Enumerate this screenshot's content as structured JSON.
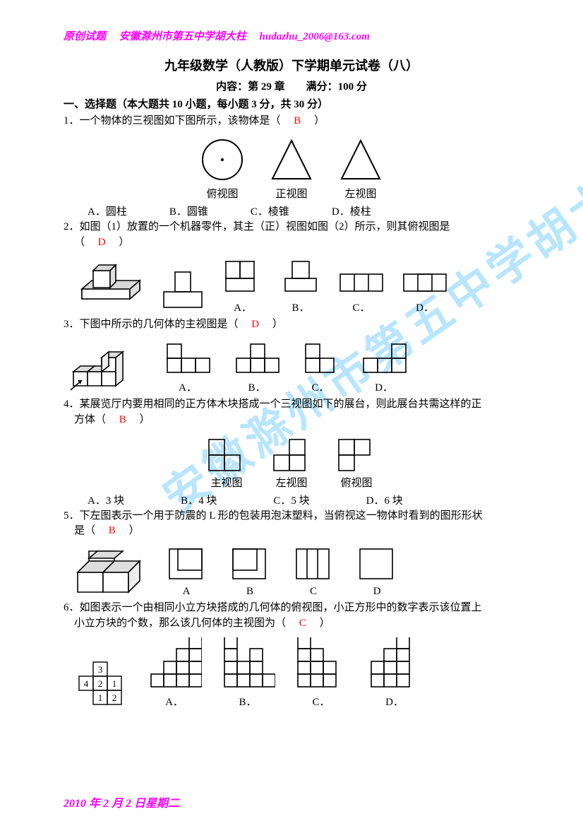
{
  "header": {
    "left": "原创试题",
    "mid": "安徽滁州市第五中学胡大柱",
    "email": "hudazhu_2006@163.com",
    "color": "#ff00ff"
  },
  "title": "九年级数学（人教版）下学期单元试卷（八）",
  "subtitle": "内容：第 29 章　　满分：100 分",
  "section1": "一、选择题（本大题共 10 小题，每小题 3 分，共 30 分）",
  "watermark": "安徽滁州市第五中学胡大柱",
  "footer": "2010 年 2 月 2 日星期二",
  "q1": {
    "text": "1．一个物体的三视图如下图所示，该物体是（",
    "ans": "B",
    "tail": "）",
    "fig_labels": [
      "俯视图",
      "正视图",
      "左视图"
    ],
    "opts": [
      "A．圆柱",
      "B．圆锥",
      "C．棱锥",
      "D．棱柱"
    ]
  },
  "q2": {
    "text1": "2．如图（1）放置的一个机器零件，其主（正）视图如图（2）所示，则其俯视图是",
    "text2": "（",
    "ans": "D",
    "text3": "）",
    "opt_lbl": [
      "A．",
      "B．",
      "C．",
      "D．"
    ]
  },
  "q3": {
    "text": "3．下图中所示的几何体的主视图是（",
    "ans": "D",
    "tail": "）",
    "opt_lbl": [
      "A．",
      "B．",
      "C．",
      "D．"
    ]
  },
  "q4": {
    "text1": "4．某展览厅内要用相同的正方体木块搭成一个三视图如下的展台，则此展台共需这样的正",
    "text2": "方体（",
    "ans": "B",
    "text3": "）",
    "fig_labels": [
      "主视图",
      "左视图",
      "俯视图"
    ],
    "opts": [
      "A．3 块",
      "B．4 块",
      "C．5 块",
      "D．6 块"
    ]
  },
  "q5": {
    "text1": "5．下左图表示一个用于防震的 L 形的包装用泡沫塑料，当俯视这一物体时看到的图形形状",
    "text2": "是（",
    "ans": "B",
    "text3": "）",
    "opt_lbl": [
      "A",
      "B",
      "C",
      "D"
    ]
  },
  "q6": {
    "text1": "6．如图表示一个由相同小立方块搭成的几何体的俯视图，小正方形中的数字表示该位置上",
    "text2": "小立方块的个数，那么该几何体的主视图为（",
    "ans": "C",
    "text3": "）",
    "grid_data": [
      [
        null,
        3,
        null
      ],
      [
        4,
        2,
        1
      ],
      [
        null,
        1,
        2
      ]
    ],
    "opt_lbl": [
      "A．",
      "B．",
      "C．",
      "D．"
    ]
  },
  "colors": {
    "answer": "#ff0000",
    "text": "#000000",
    "stroke": "#000000",
    "watermark": "#7fd0ff"
  }
}
